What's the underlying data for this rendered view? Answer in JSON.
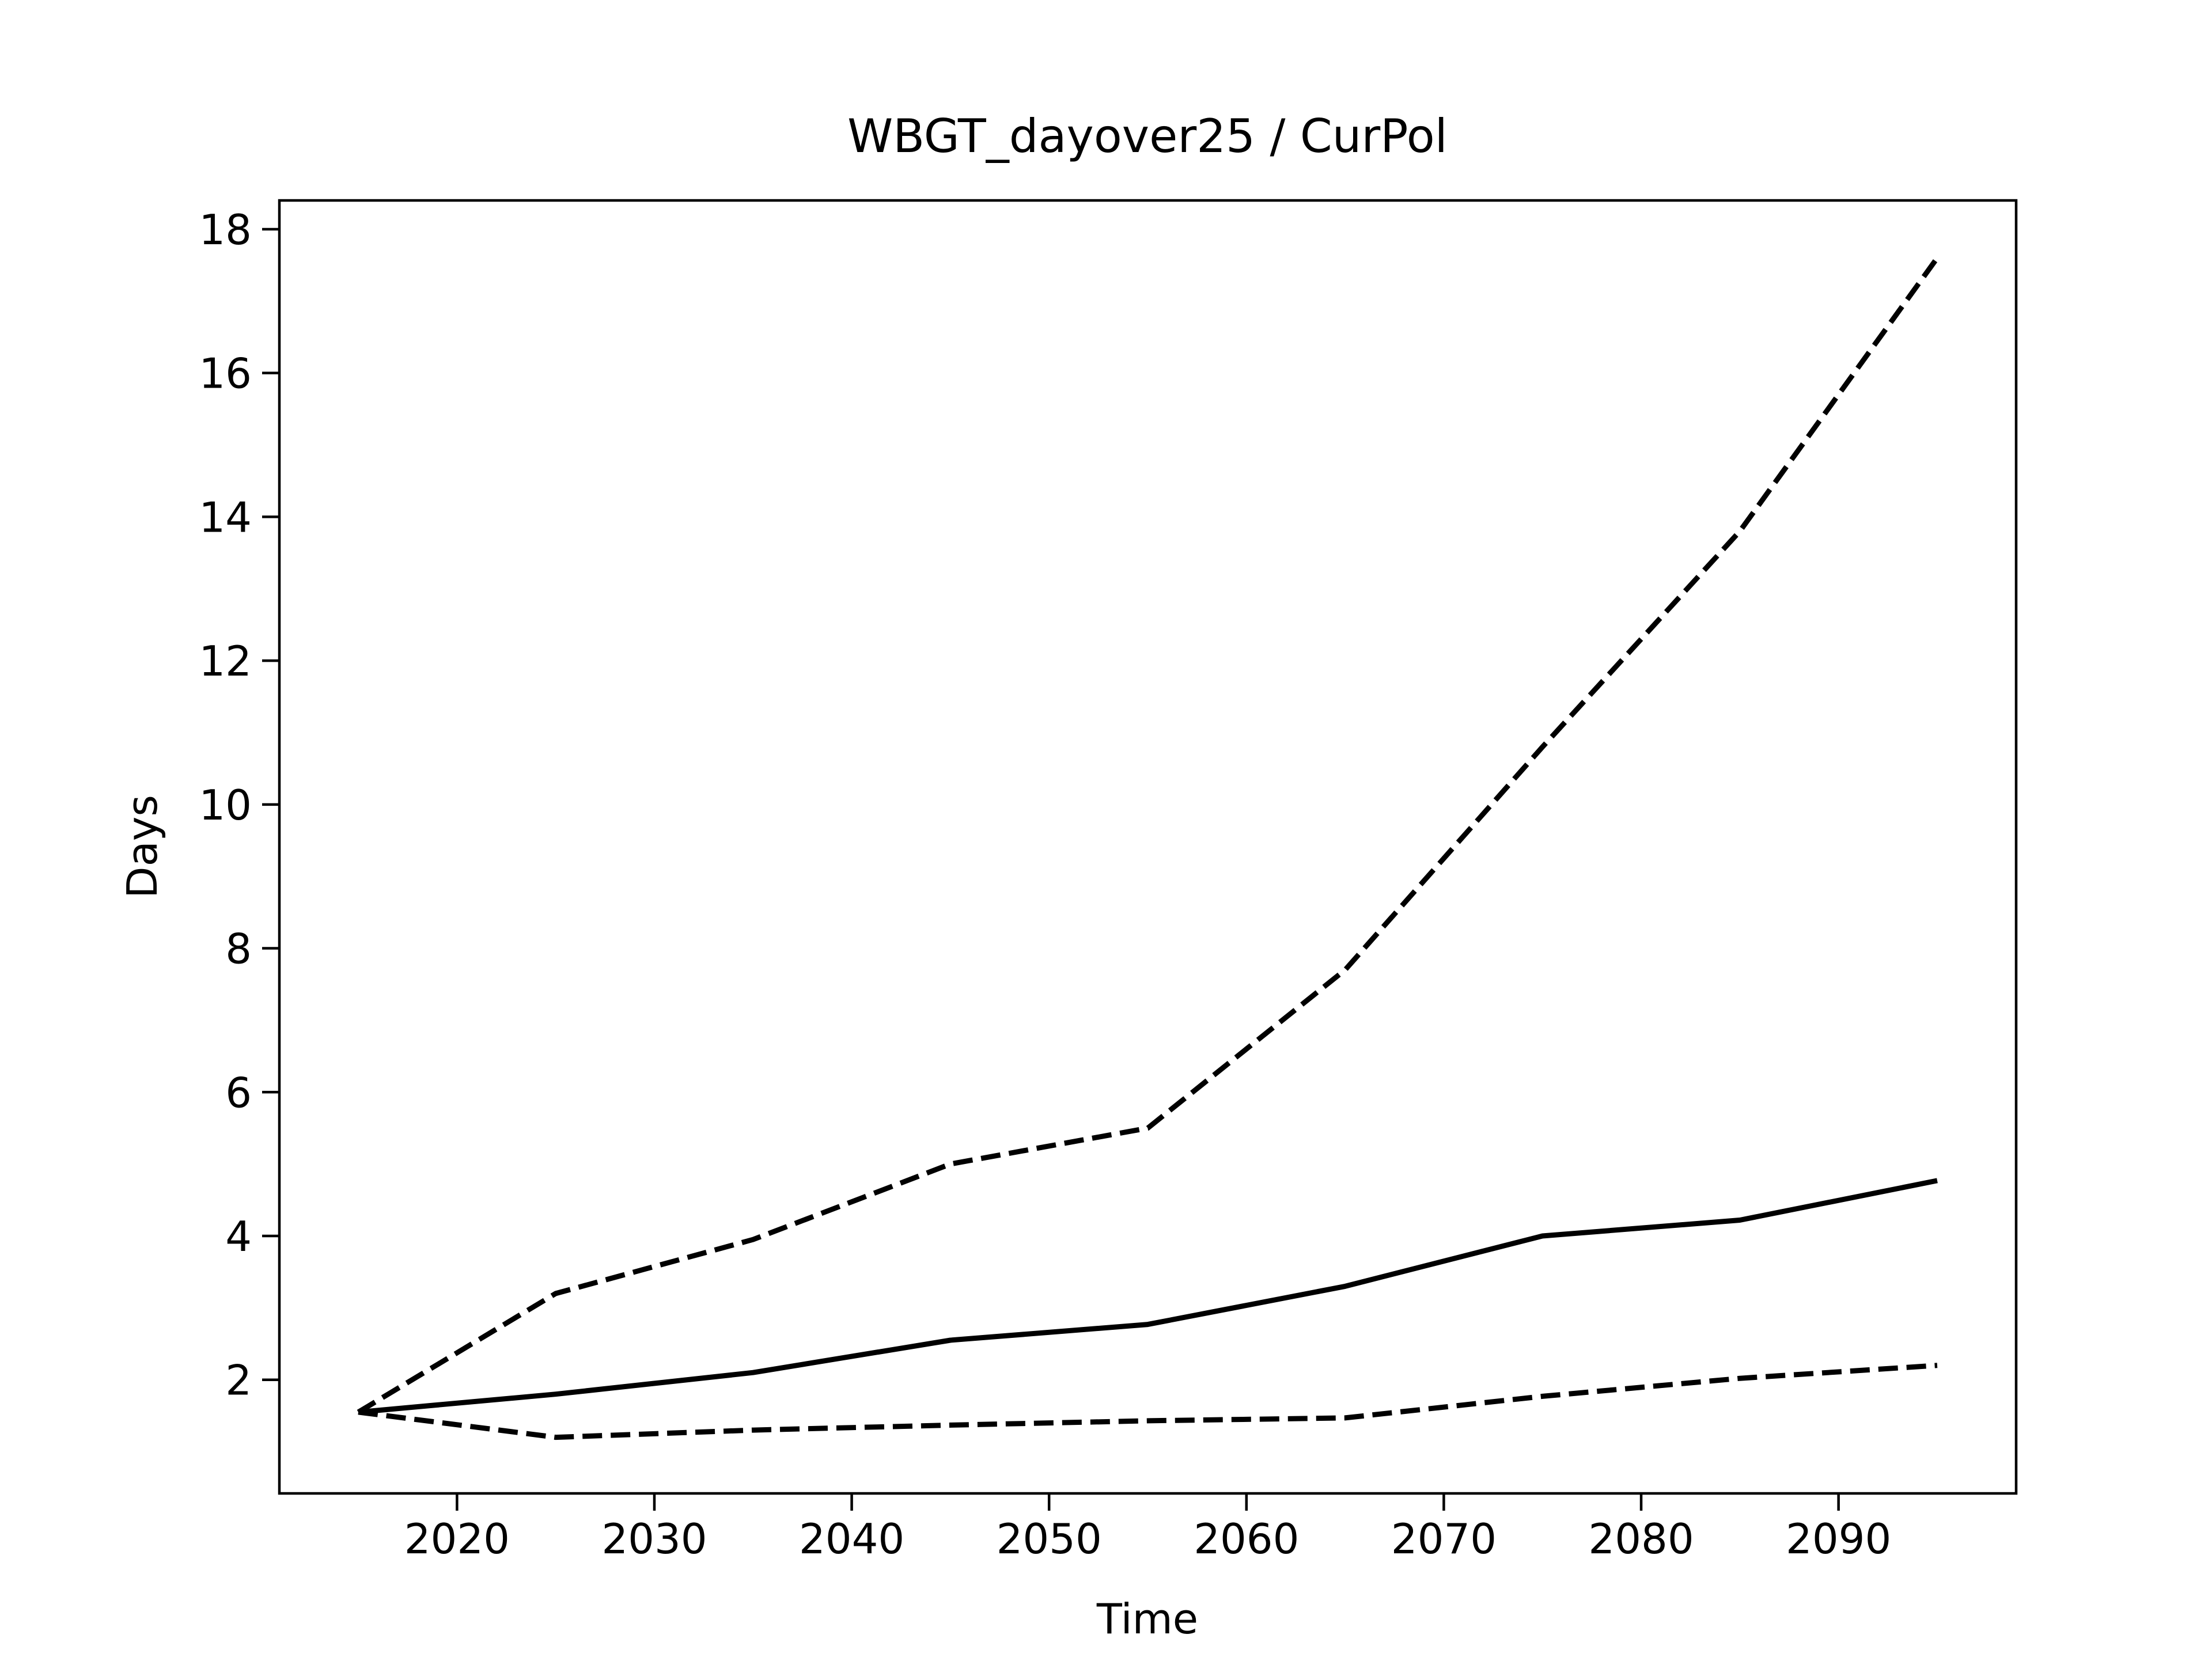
{
  "chart_data": {
    "type": "line",
    "title": "WBGT_dayover25 / CurPol",
    "xlabel": "Time",
    "ylabel": "Days",
    "x": [
      2015,
      2025,
      2035,
      2045,
      2055,
      2065,
      2075,
      2085,
      2095
    ],
    "series": [
      {
        "style": "dashed",
        "values": [
          1.55,
          3.2,
          3.95,
          5.0,
          5.5,
          7.7,
          10.8,
          13.8,
          17.6
        ]
      },
      {
        "style": "solid",
        "values": [
          1.55,
          1.8,
          2.1,
          2.55,
          2.77,
          3.3,
          4.0,
          4.22,
          4.77
        ]
      },
      {
        "style": "dashed",
        "values": [
          1.55,
          1.2,
          1.3,
          1.37,
          1.43,
          1.47,
          1.77,
          2.02,
          2.2
        ]
      }
    ],
    "xlim": [
      2011,
      2099
    ],
    "ylim": [
      0.42,
      18.4
    ],
    "xticks": [
      "2020",
      "2030",
      "2040",
      "2050",
      "2060",
      "2070",
      "2080",
      "2090"
    ],
    "yticks": [
      "2",
      "4",
      "6",
      "8",
      "10",
      "12",
      "14",
      "16",
      "18"
    ],
    "grid": false,
    "line_color": "#000000"
  }
}
